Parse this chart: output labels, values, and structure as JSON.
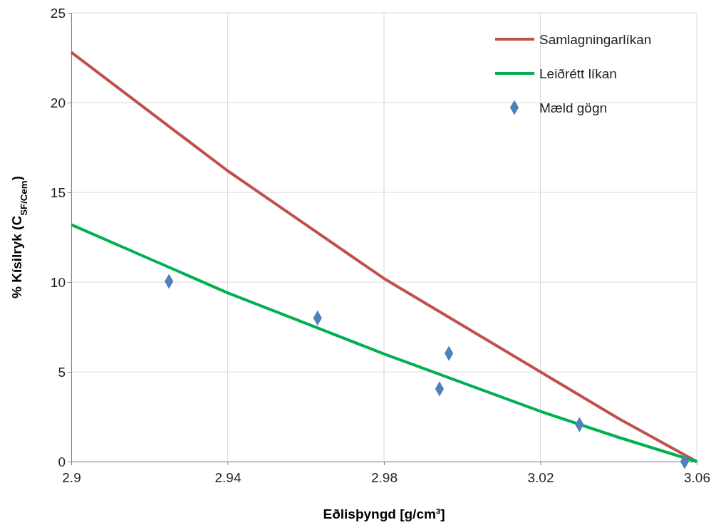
{
  "chart_data": {
    "type": "line",
    "xlabel": "Eðlisþyngd [g/cm³]",
    "ylabel": "% Kísilryk (C$_{SF/Cem}$)",
    "xlim": [
      2.9,
      3.06
    ],
    "xticks": [
      {
        "value": 2.9,
        "label": "2.9"
      },
      2.94,
      2.98,
      3.02,
      3.06
    ],
    "ylim": [
      0,
      25
    ],
    "yticks": [
      0,
      5,
      10,
      15,
      20,
      25
    ],
    "grid": true,
    "legend": "top right",
    "series": [
      {
        "name": "Samlagningarlíkan",
        "type": "line",
        "color": "#c0504d",
        "marker": "none",
        "x": [
          2.9,
          2.92,
          2.94,
          2.96,
          2.98,
          3.0,
          3.02,
          3.04,
          3.06
        ],
        "values": [
          22.8,
          19.5,
          16.2,
          13.2,
          10.2,
          7.6,
          5.0,
          2.4,
          0
        ]
      },
      {
        "name": "Leiðrétt líkan",
        "type": "line",
        "color": "#00b050",
        "marker": "none",
        "x": [
          2.9,
          2.92,
          2.94,
          2.96,
          2.98,
          3.0,
          3.02,
          3.04,
          3.06
        ],
        "values": [
          13.2,
          11.3,
          9.4,
          7.7,
          6.0,
          4.4,
          2.8,
          1.35,
          0
        ]
      },
      {
        "name": "Mæld gögn",
        "type": "scatter",
        "color": "#4f81bd",
        "marker": "diamond",
        "x": [
          2.925,
          2.963,
          2.9966,
          2.9942,
          3.03,
          3.0569
        ],
        "values": [
          10.04,
          8.0,
          6.03,
          4.05,
          2.06,
          0
        ]
      }
    ]
  }
}
